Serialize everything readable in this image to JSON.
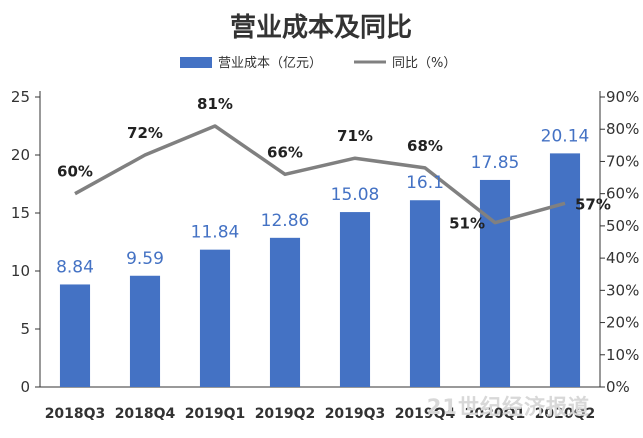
{
  "chart_data": {
    "type": "bar",
    "title": "营业成本及同比",
    "categories": [
      "2018Q3",
      "2018Q4",
      "2019Q1",
      "2019Q2",
      "2019Q3",
      "2019Q4",
      "2020Q1",
      "2020Q2"
    ],
    "series": [
      {
        "name": "营业成本（亿元）",
        "type": "bar",
        "axis": "left",
        "values": [
          8.84,
          9.59,
          11.84,
          12.86,
          15.08,
          16.1,
          17.85,
          20.14
        ],
        "labels": [
          "8.84",
          "9.59",
          "11.84",
          "12.86",
          "15.08",
          "16.1",
          "17.85",
          "20.14"
        ],
        "color": "#4472c4"
      },
      {
        "name": "同比（%）",
        "type": "line",
        "axis": "right",
        "values": [
          60,
          72,
          81,
          66,
          71,
          68,
          51,
          57
        ],
        "labels": [
          "60%",
          "72%",
          "81%",
          "66%",
          "71%",
          "68%",
          "51%",
          "57%"
        ],
        "color": "#808080"
      }
    ],
    "y_left": {
      "range": [
        0,
        25
      ],
      "ticks": [
        0,
        5,
        10,
        15,
        20,
        25
      ],
      "tick_labels": [
        "0",
        "5",
        "10",
        "15",
        "20",
        "25"
      ]
    },
    "y_right": {
      "range": [
        0,
        90
      ],
      "ticks": [
        0,
        10,
        20,
        30,
        40,
        50,
        60,
        70,
        80,
        90
      ],
      "tick_labels": [
        "0%",
        "10%",
        "20%",
        "30%",
        "40%",
        "50%",
        "60%",
        "70%",
        "80%",
        "90%"
      ]
    },
    "legend_position": "top",
    "grid": false
  },
  "watermark": "21世纪经济报道"
}
